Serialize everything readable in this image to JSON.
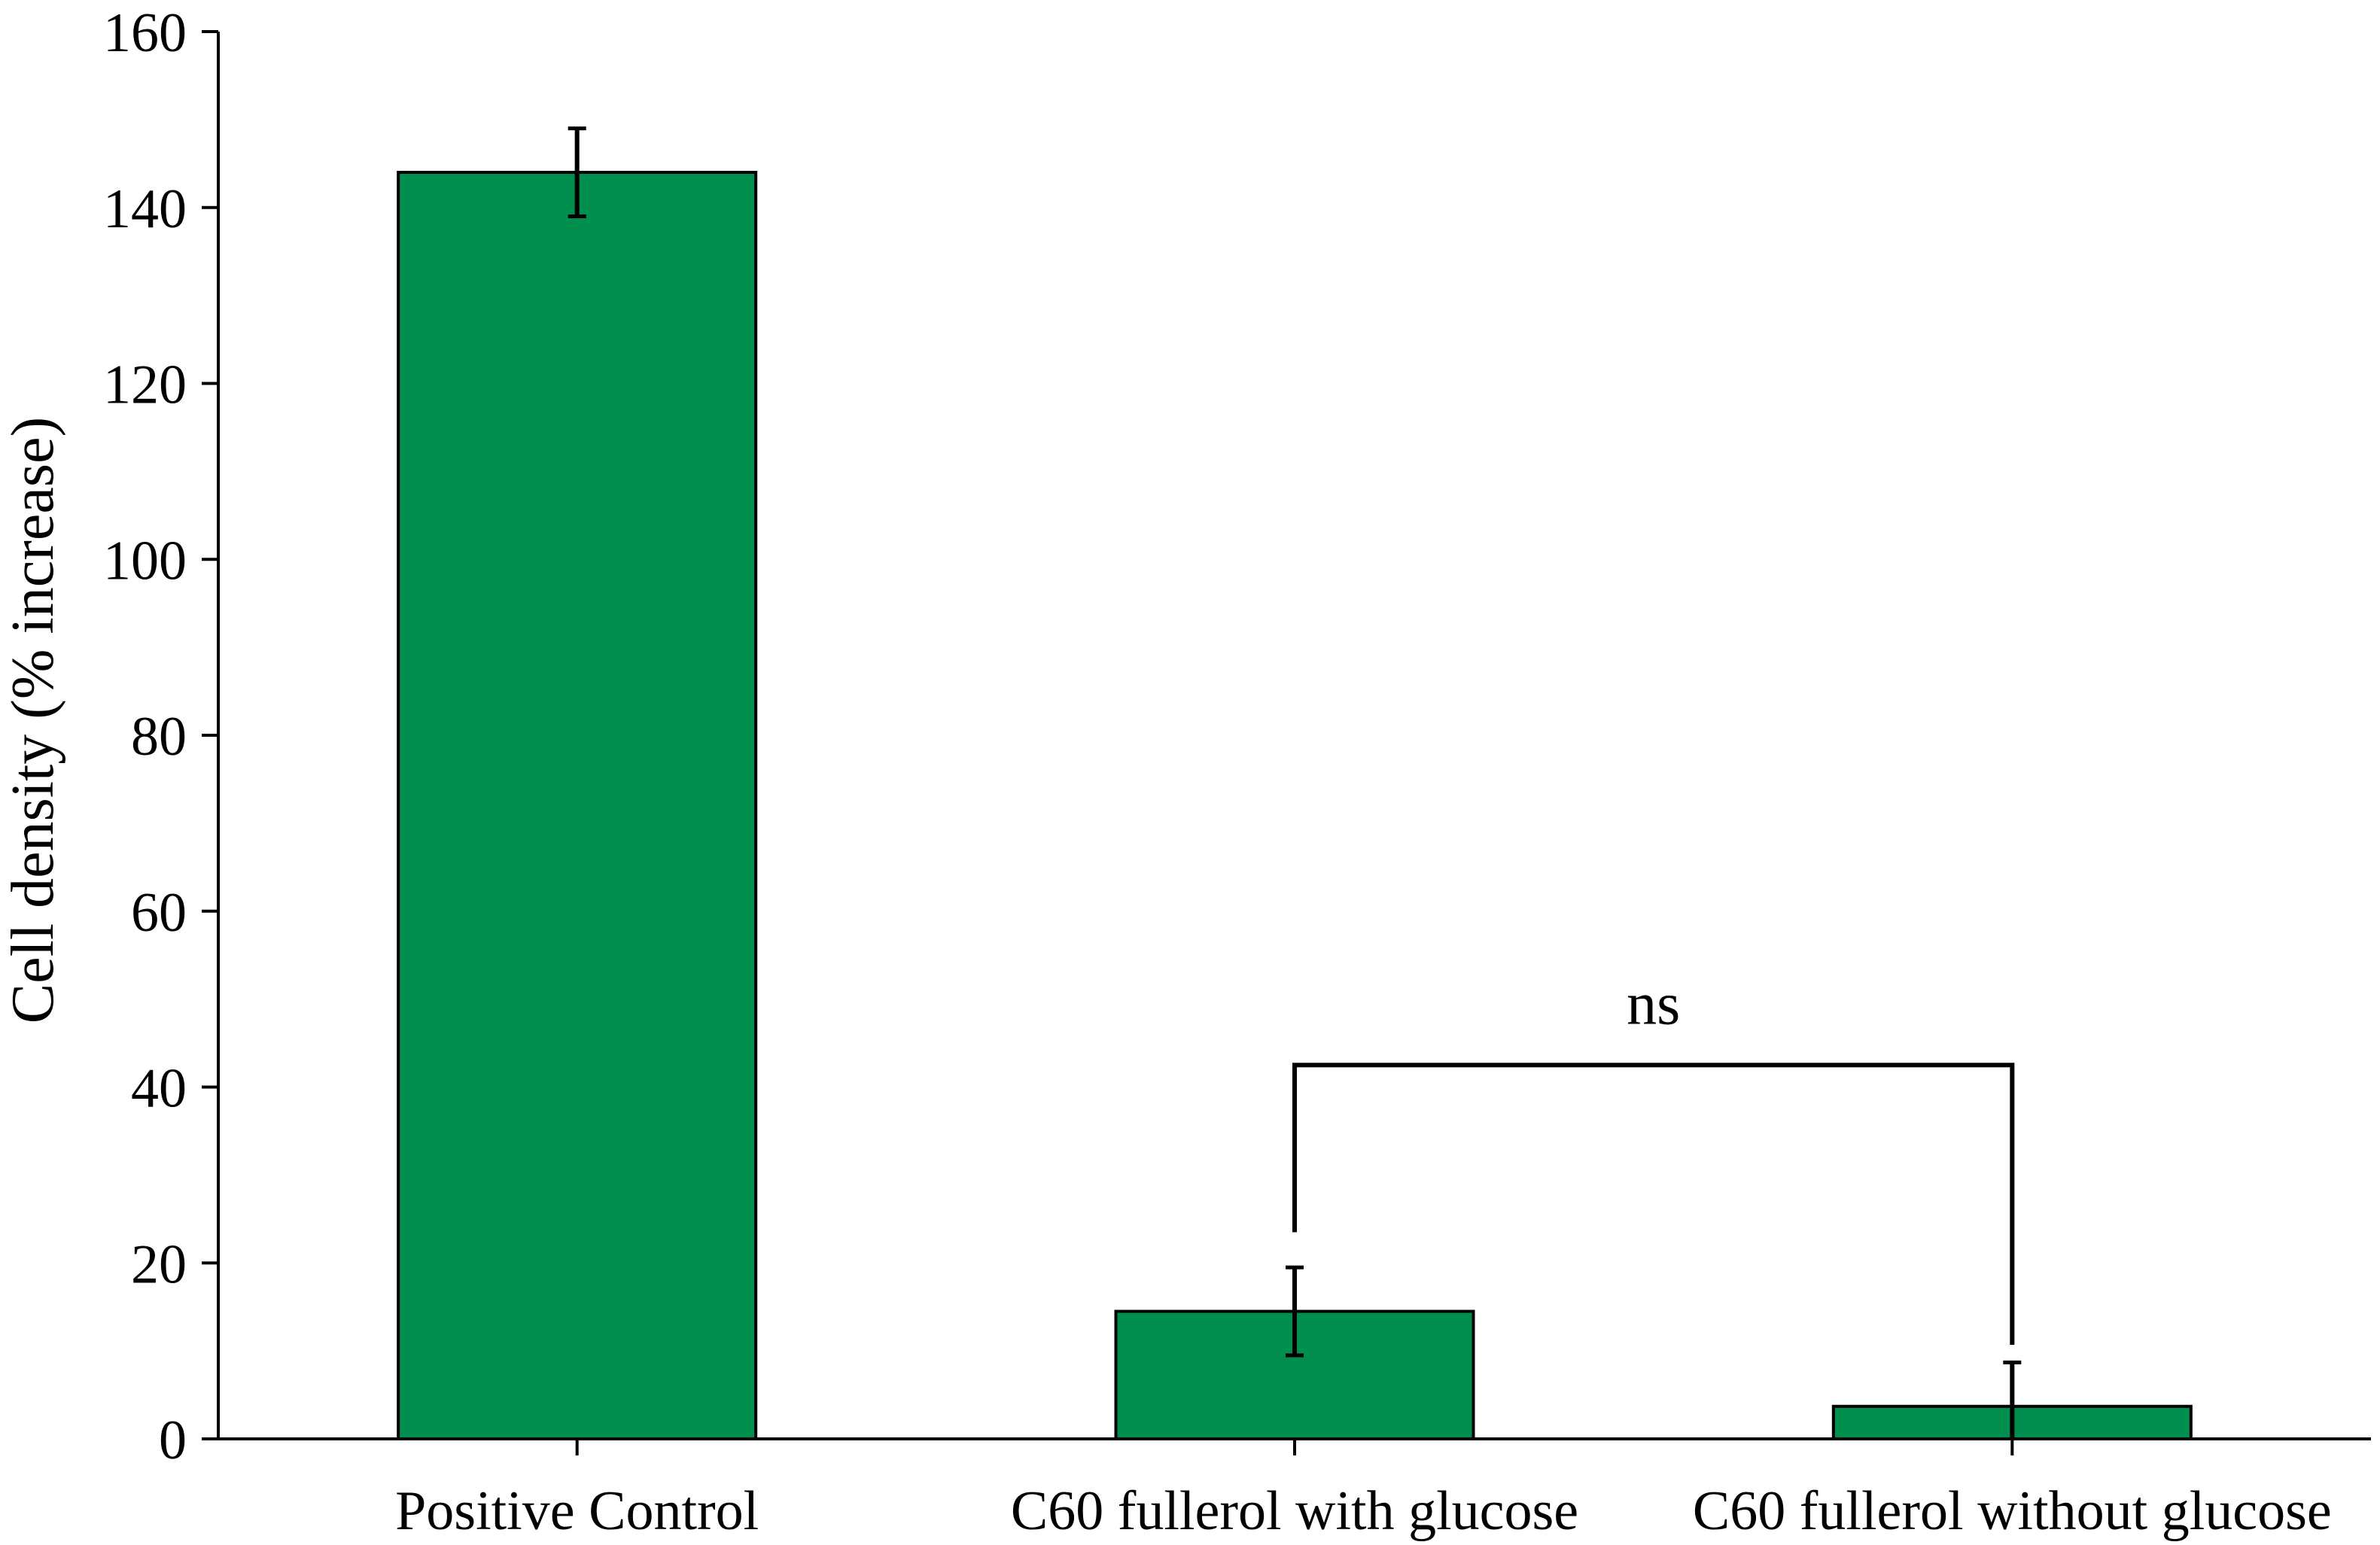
{
  "chart_data": {
    "type": "bar",
    "title": "",
    "xlabel": "",
    "ylabel": "Cell density (% increase)",
    "ylim": [
      0,
      160
    ],
    "yticks": [
      0,
      20,
      40,
      60,
      80,
      100,
      120,
      140,
      160
    ],
    "grid": false,
    "legend": "none",
    "categories": [
      "Positive Control",
      "C60 fullerol with glucose",
      "C60 fullerol without glucose"
    ],
    "values": [
      144,
      14.5,
      3.7
    ],
    "errors": [
      5,
      5,
      5
    ],
    "bar_color": "#008f4f",
    "annotations": [
      {
        "text": "ns",
        "from_category": 1,
        "to_category": 2,
        "y": 42.5
      }
    ]
  }
}
